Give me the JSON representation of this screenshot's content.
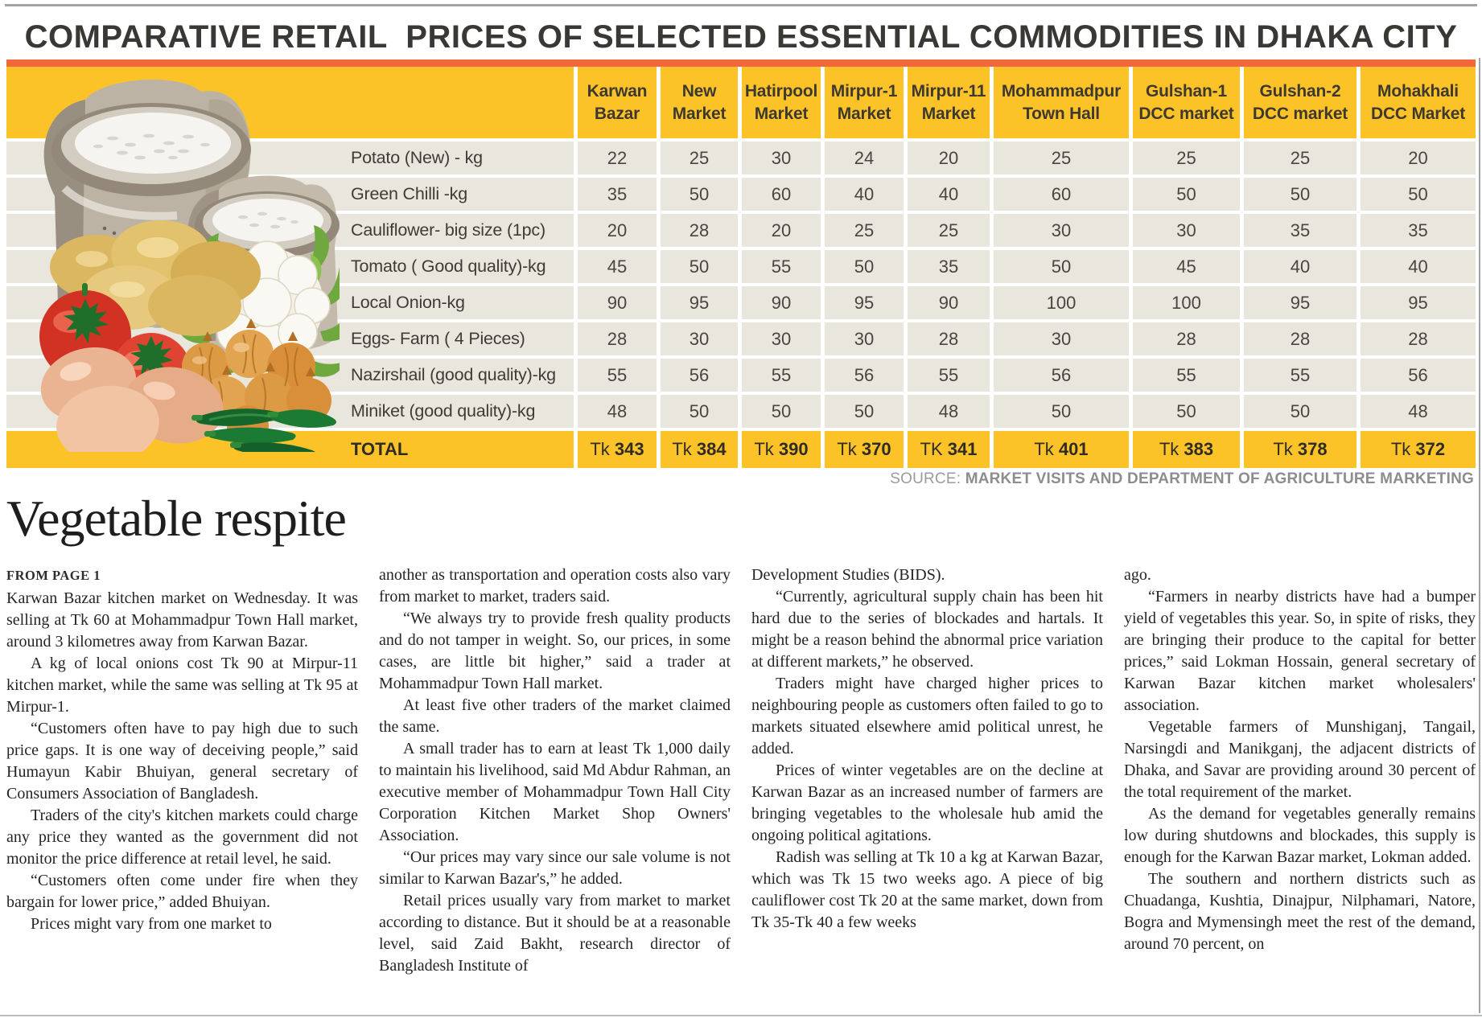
{
  "page": {
    "title": "COMPARATIVE RETAIL  PRICES OF SELECTED ESSENTIAL COMMODITIES IN DHAKA CITY",
    "source_label": "SOURCE:",
    "source_text": "MARKET VISITS AND DEPARTMENT OF AGRICULTURE MARKETING"
  },
  "colors": {
    "accent_orange": "#f2683c",
    "header_yellow": "#fcc328",
    "row_gray": "#e8e6dd",
    "title_ink": "#3a3835"
  },
  "table": {
    "columns": [
      {
        "line1": "Karwan",
        "line2": "Bazar"
      },
      {
        "line1": "New",
        "line2": "Market"
      },
      {
        "line1": "Hatirpool",
        "line2": "Market"
      },
      {
        "line1": "Mirpur-1",
        "line2": "Market"
      },
      {
        "line1": "Mirpur-11",
        "line2": "Market"
      },
      {
        "line1": "Mohammadpur",
        "line2": "Town Hall"
      },
      {
        "line1": "Gulshan-1",
        "line2": "DCC market"
      },
      {
        "line1": "Gulshan-2",
        "line2": "DCC market"
      },
      {
        "line1": "Mohakhali",
        "line2": "DCC Market"
      }
    ],
    "rows": [
      {
        "label": "Potato (New) - kg",
        "values": [
          "22",
          "25",
          "30",
          "24",
          "20",
          "25",
          "25",
          "25",
          "20"
        ]
      },
      {
        "label": "Green Chilli -kg",
        "values": [
          "35",
          "50",
          "60",
          "40",
          "40",
          "60",
          "50",
          "50",
          "50"
        ]
      },
      {
        "label": "Cauliflower- big size (1pc)",
        "values": [
          "20",
          "28",
          "20",
          "25",
          "25",
          "30",
          "30",
          "35",
          "35"
        ]
      },
      {
        "label": "Tomato ( Good quality)-kg",
        "values": [
          "45",
          "50",
          "55",
          "50",
          "35",
          "50",
          "45",
          "40",
          "40"
        ]
      },
      {
        "label": "Local Onion-kg",
        "values": [
          "90",
          "95",
          "90",
          "95",
          "90",
          "100",
          "100",
          "95",
          "95"
        ]
      },
      {
        "label": "Eggs- Farm ( 4 Pieces)",
        "values": [
          "28",
          "30",
          "30",
          "30",
          "28",
          "30",
          "28",
          "28",
          "28"
        ]
      },
      {
        "label": "Nazirshail (good quality)-kg",
        "values": [
          "55",
          "56",
          "55",
          "56",
          "55",
          "56",
          "55",
          "55",
          "56"
        ]
      },
      {
        "label": "Miniket (good quality)-kg",
        "values": [
          "48",
          "50",
          "50",
          "50",
          "48",
          "50",
          "50",
          "50",
          "48"
        ]
      }
    ],
    "total": {
      "label": "TOTAL",
      "values": [
        {
          "currency": "Tk",
          "amount": "343"
        },
        {
          "currency": "Tk",
          "amount": "384"
        },
        {
          "currency": "Tk",
          "amount": "390"
        },
        {
          "currency": "Tk",
          "amount": "370"
        },
        {
          "currency": "TK",
          "amount": "341"
        },
        {
          "currency": "Tk",
          "amount": "401"
        },
        {
          "currency": "Tk",
          "amount": "383"
        },
        {
          "currency": "Tk",
          "amount": "378"
        },
        {
          "currency": "Tk",
          "amount": "372"
        }
      ]
    }
  },
  "article": {
    "headline": "Vegetable respite",
    "kicker": "FROM PAGE 1",
    "columns": [
      {
        "paragraphs": [
          "Karwan Bazar kitchen market on Wednesday. It was selling at Tk 60 at Mohammadpur Town Hall market, around 3 kilometres away from Karwan Bazar.",
          "A kg of local onions cost Tk 90 at Mirpur-11 kitchen market, while the same was selling at Tk 95 at Mirpur-1.",
          "“Customers often have to pay high due to such price gaps. It is one way of deceiving people,” said Humayun Kabir Bhuiyan, general secretary of Consumers Association of Bangladesh.",
          "Traders of the city's kitchen markets could charge any price they wanted as the government did not monitor the price difference at retail level, he said.",
          "“Customers often come under fire when they bargain for lower price,” added Bhuiyan.",
          "Prices might vary from one market to"
        ]
      },
      {
        "paragraphs": [
          "another as transportation and operation costs also vary from market to market, traders said.",
          "“We always try to provide fresh quality products and do not tamper in weight. So, our prices, in some cases, are little bit higher,” said a trader at Mohammadpur Town Hall market.",
          "At least five other traders of the market claimed the same.",
          "A small trader has to earn at least Tk 1,000 daily to maintain his livelihood, said Md Abdur Rahman, an executive member of Mohammadpur Town Hall City Corporation Kitchen Market Shop Owners' Association.",
          "“Our prices may vary since our sale volume is not similar to Karwan Bazar's,” he added.",
          "Retail prices usually vary from market to market according to distance. But it should be at a reasonable level, said Zaid Bakht, research director of Bangladesh Institute of"
        ]
      },
      {
        "paragraphs": [
          "Development Studies (BIDS).",
          "“Currently, agricultural supply chain has been hit hard due to the series of blockades and hartals. It might be a reason behind the abnormal price variation at different markets,” he observed.",
          "Traders might have charged higher prices to neighbouring people as customers often failed to go to markets situated elsewhere amid political unrest, he added.",
          "Prices of winter vegetables are on the decline at Karwan Bazar as an increased number of farmers are bringing vegetables to the wholesale hub amid the ongoing political agitations.",
          "Radish was selling at Tk 10 a kg at Karwan Bazar, which was Tk 15 two weeks ago. A piece of big cauliflower cost Tk 20 at the same market, down from Tk 35-Tk 40 a few weeks"
        ]
      },
      {
        "paragraphs": [
          "ago.",
          "“Farmers in nearby districts have had a bumper yield of vegetables this year. So, in spite of risks, they are bringing their produce to the capital for better prices,” said Lokman Hossain, general secretary of Karwan Bazar kitchen market wholesalers' association.",
          "Vegetable farmers of Munshiganj, Tangail, Narsingdi and Manikganj, the adjacent districts of Dhaka, and Savar are providing around 30 percent of the total requirement of the market.",
          "As the demand for vegetables generally remains low during shutdowns and blockades, this supply is enough for the Karwan Bazar market, Lokman added.",
          "The southern and northern districts such as Chuadanga, Kushtia, Dinajpur, Nilphamari, Natore, Bogra and Mymensingh meet the rest of the demand, around 70 percent, on"
        ]
      }
    ]
  }
}
